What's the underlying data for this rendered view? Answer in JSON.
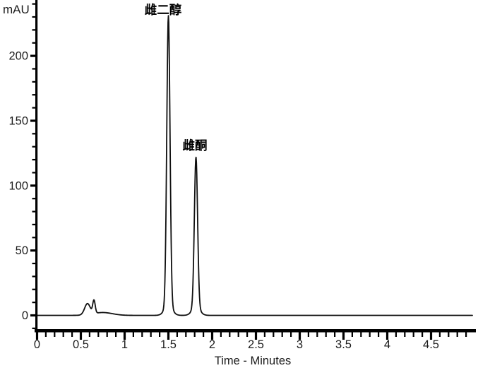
{
  "figure": {
    "background": "#ffffff",
    "axis_color": "#000000",
    "text_color": "#1c1c1c",
    "trace_color": "#101010"
  },
  "chart_data": {
    "type": "line",
    "subtype": "chromatogram",
    "title": "",
    "xlabel": "Time - Minutes",
    "ylabel": "mAU",
    "xlim": [
      0,
      5.0
    ],
    "ylim": [
      0,
      243
    ],
    "grid": false,
    "legend": "none",
    "x_tick_values": [
      0,
      0.5,
      1,
      1.5,
      2,
      2.5,
      3,
      3.5,
      4,
      4.5
    ],
    "x_tick_labels": [
      "0",
      "0.5",
      "1",
      "1.5",
      "2",
      "2.5",
      "3",
      "3.5",
      "4",
      "4.5"
    ],
    "x_minor_step": 0.1,
    "y_tick_values": [
      0,
      50,
      100,
      150,
      200
    ],
    "y_tick_labels": [
      "0",
      "50",
      "100",
      "150",
      "200"
    ],
    "y_minor_step": 10,
    "peaks": [
      {
        "label": "雌二醇",
        "retention_time_min": 1.5,
        "height_mAU": 230
      },
      {
        "label": "雌酮",
        "retention_time_min": 1.82,
        "height_mAU": 121
      }
    ],
    "baseline_disturbance": {
      "time_range_min": [
        0.49,
        0.95
      ],
      "hump_heights_mAU": [
        9,
        12
      ]
    },
    "trace_model": {
      "components": [
        {
          "center_min": 0.575,
          "height_mAU": 8.5,
          "sigma_min": 0.032
        },
        {
          "center_min": 0.65,
          "height_mAU": 10.0,
          "sigma_min": 0.014
        },
        {
          "center_min": 0.75,
          "height_mAU": 2.2,
          "sigma_min": 0.11
        },
        {
          "center_min": 1.5,
          "height_mAU": 224.0,
          "sigma_min": 0.0185
        },
        {
          "center_min": 1.5,
          "height_mAU": 7.0,
          "sigma_min": 0.045
        },
        {
          "center_min": 1.815,
          "height_mAU": 116.0,
          "sigma_min": 0.0185
        },
        {
          "center_min": 1.815,
          "height_mAU": 6.0,
          "sigma_min": 0.045
        }
      ]
    }
  }
}
